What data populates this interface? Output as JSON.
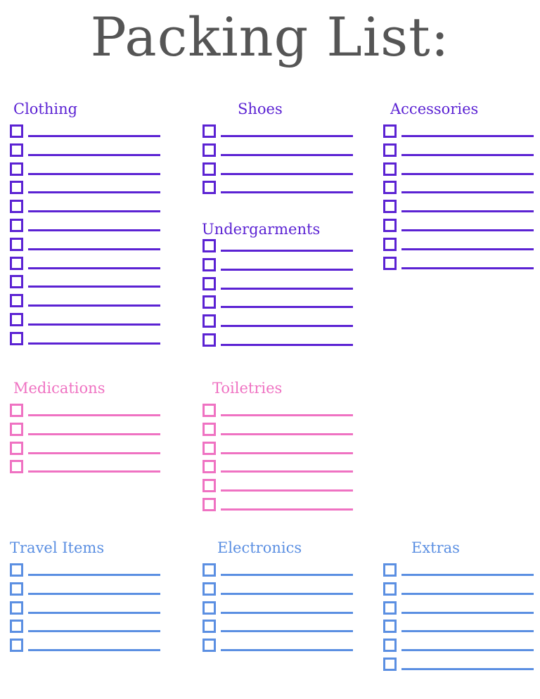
{
  "title": "Packing List:",
  "colors": {
    "purple": "#5b22d3",
    "pink": "#ef72c2",
    "blue": "#5b8fe2",
    "title": "#555555"
  },
  "sections": [
    {
      "id": "clothing",
      "title": "Clothing",
      "color": "#5b22d3",
      "rows": 12
    },
    {
      "id": "shoes",
      "title": "Shoes",
      "color": "#5b22d3",
      "rows": 4
    },
    {
      "id": "accessories",
      "title": "Accessories",
      "color": "#5b22d3",
      "rows": 8
    },
    {
      "id": "undergarments",
      "title": "Undergarments",
      "color": "#5b22d3",
      "rows": 6
    },
    {
      "id": "medications",
      "title": "Medications",
      "color": "#ef72c2",
      "rows": 4
    },
    {
      "id": "toiletries",
      "title": "Toiletries",
      "color": "#ef72c2",
      "rows": 6
    },
    {
      "id": "travel-items",
      "title": "Travel Items",
      "color": "#5b8fe2",
      "rows": 5
    },
    {
      "id": "electronics",
      "title": "Electronics",
      "color": "#5b8fe2",
      "rows": 5
    },
    {
      "id": "extras",
      "title": "Extras",
      "color": "#5b8fe2",
      "rows": 6
    }
  ]
}
